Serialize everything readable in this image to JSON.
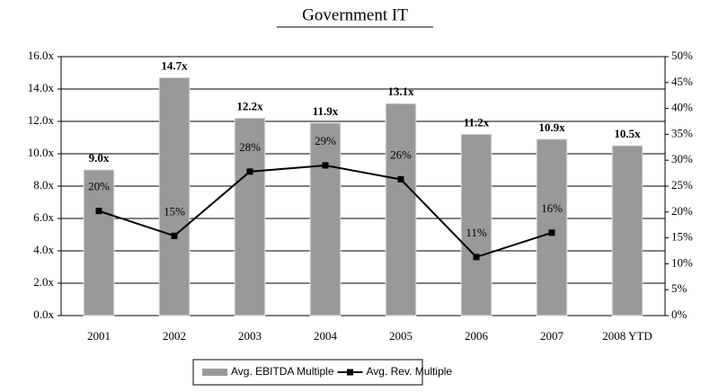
{
  "chart_data": {
    "type": "bar",
    "title": "Government IT",
    "categories": [
      "2001",
      "2002",
      "2003",
      "2004",
      "2005",
      "2006",
      "2007",
      "2008 YTD"
    ],
    "series": [
      {
        "name": "Avg. EBITDA Multiple",
        "type": "bar",
        "color": "#999999",
        "values": [
          9.0,
          14.7,
          12.2,
          11.9,
          13.1,
          11.2,
          10.9,
          10.5
        ],
        "value_labels": [
          "9.0x",
          "14.7x",
          "12.2x",
          "11.9x",
          "13.1x",
          "11.2x",
          "10.9x",
          "10.5x"
        ]
      },
      {
        "name": "Avg. Rev. Multiple",
        "type": "line",
        "axis": "y2",
        "color": "#000000",
        "values": [
          20.2,
          15.4,
          27.8,
          29.0,
          26.3,
          11.3,
          16.0,
          null
        ],
        "value_labels": [
          "20%",
          "15%",
          "28%",
          "29%",
          "26%",
          "11%",
          "16%",
          null
        ]
      }
    ],
    "ylim": [
      0,
      16
    ],
    "yticks": [
      {
        "value": 0,
        "label": "0.0x"
      },
      {
        "value": 2,
        "label": "2.0x"
      },
      {
        "value": 4,
        "label": "4.0x"
      },
      {
        "value": 6,
        "label": "6.0x"
      },
      {
        "value": 8,
        "label": "8.0x"
      },
      {
        "value": 10,
        "label": "10.0x"
      },
      {
        "value": 12,
        "label": "12.0x"
      },
      {
        "value": 14,
        "label": "14.0x"
      },
      {
        "value": 16,
        "label": "16.0x"
      }
    ],
    "y2lim": [
      0,
      50
    ],
    "y2ticks": [
      {
        "value": 0,
        "label": "0%"
      },
      {
        "value": 5,
        "label": "5%"
      },
      {
        "value": 10,
        "label": "10%"
      },
      {
        "value": 15,
        "label": "15%"
      },
      {
        "value": 20,
        "label": "20%"
      },
      {
        "value": 25,
        "label": "25%"
      },
      {
        "value": 30,
        "label": "30%"
      },
      {
        "value": 35,
        "label": "35%"
      },
      {
        "value": 40,
        "label": "40%"
      },
      {
        "value": 45,
        "label": "45%"
      },
      {
        "value": 50,
        "label": "50%"
      }
    ],
    "grid": true,
    "legend": "bottom"
  }
}
